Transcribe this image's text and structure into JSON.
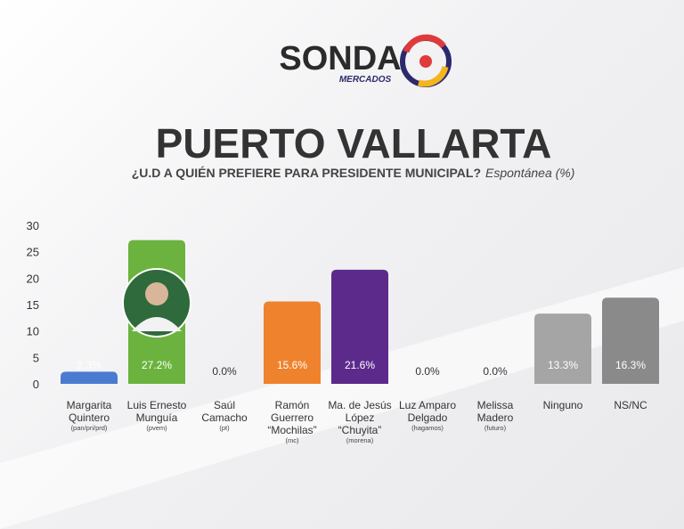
{
  "logo": {
    "name": "SONDA",
    "subname": "MERCADOS"
  },
  "chart_data": {
    "type": "bar",
    "title": "PUERTO VALLARTA",
    "subtitle": "¿U.D A QUIÉN PREFIERE PARA PRESIDENTE MUNICIPAL?",
    "subtitle_note": "Espontánea (%)",
    "categories": [
      "Margarita Quintero",
      "Luis Ernesto Munguía",
      "Saúl Camacho",
      "Ramón Guerrero “Mochilas”",
      "Ma. de Jesús López “Chuyita”",
      "Luz Amparo Delgado",
      "Melissa Madero",
      "Ninguno",
      "NS/NC"
    ],
    "parties": [
      "(pan/pri/prd)",
      "(pvem)",
      "(pt)",
      "(mc)",
      "(morena)",
      "(hagamos)",
      "(futuro)",
      null,
      null
    ],
    "values": [
      2.3,
      27.2,
      0.0,
      15.6,
      21.6,
      0.0,
      0.0,
      13.3,
      16.3
    ],
    "value_labels": [
      "2.3%",
      "27.2%",
      "0.0%",
      "15.6%",
      "21.6%",
      "0.0%",
      "0.0%",
      "13.3%",
      "16.3%"
    ],
    "colors": [
      "#4a7bd0",
      "#6bb33e",
      "#999999",
      "#ef822c",
      "#5c2a8b",
      "#999999",
      "#999999",
      "#a5a5a5",
      "#8a8a8a"
    ],
    "ylim": [
      0,
      30
    ],
    "yticks": [
      0,
      5,
      10,
      15,
      20,
      25,
      30
    ],
    "grid": false
  }
}
